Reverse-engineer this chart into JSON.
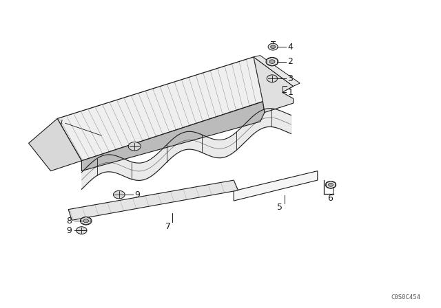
{
  "bg_color": "#ffffff",
  "line_color": "#1a1a1a",
  "fig_width": 6.4,
  "fig_height": 4.48,
  "dpi": 100,
  "watermark": "C0S0C454",
  "label_fontsize": 9,
  "hatch_color": "#555555",
  "fill_light": "#f0f0f0",
  "fill_mid": "#d8d8d8",
  "fill_dark": "#bbbbbb"
}
